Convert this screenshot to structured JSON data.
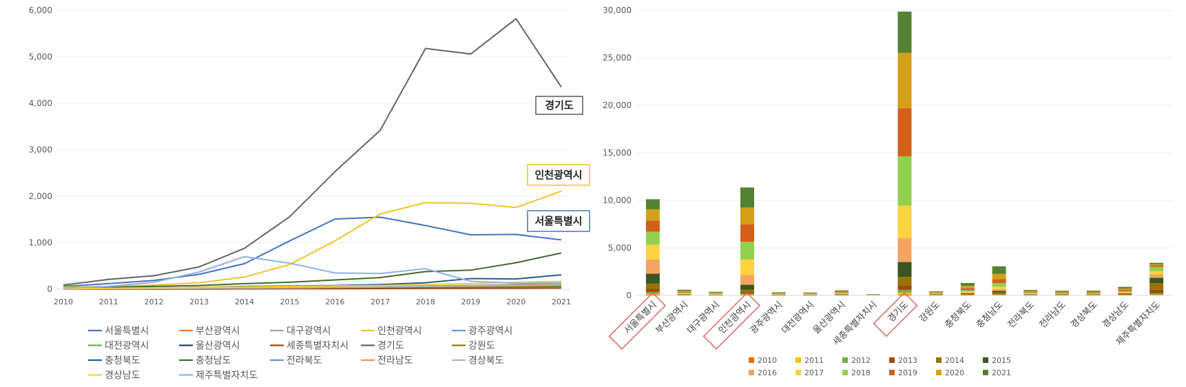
{
  "chart_data": [
    {
      "type": "line",
      "title": "",
      "xlabel": "",
      "ylabel": "",
      "ylim": [
        0,
        6000
      ],
      "yticks": [
        0,
        1000,
        2000,
        3000,
        4000,
        5000,
        6000
      ],
      "ytick_labels": [
        "0",
        "1,000",
        "2,000",
        "3,000",
        "4,000",
        "5,000",
        "6,000"
      ],
      "x": [
        "2010",
        "2011",
        "2012",
        "2013",
        "2014",
        "2015",
        "2016",
        "2017",
        "2018",
        "2019",
        "2020",
        "2021"
      ],
      "grid": true,
      "legend_position": "bottom",
      "series": [
        {
          "name": "서울특별시",
          "color": "#4472c4",
          "values": [
            60,
            120,
            190,
            320,
            550,
            1040,
            1510,
            1550,
            1370,
            1170,
            1180,
            1060
          ]
        },
        {
          "name": "부산광역시",
          "color": "#ed7d31",
          "values": [
            5,
            10,
            15,
            20,
            30,
            40,
            50,
            60,
            70,
            80,
            100,
            120
          ]
        },
        {
          "name": "대구광역시",
          "color": "#a5a5a5",
          "values": [
            5,
            10,
            12,
            15,
            20,
            25,
            30,
            35,
            40,
            50,
            60,
            80
          ]
        },
        {
          "name": "인천광역시",
          "color": "#f2c12e",
          "values": [
            40,
            60,
            90,
            140,
            260,
            530,
            1040,
            1620,
            1860,
            1850,
            1760,
            2110
          ]
        },
        {
          "name": "광주광역시",
          "color": "#5b9bd5",
          "values": [
            5,
            8,
            10,
            12,
            18,
            25,
            30,
            35,
            40,
            45,
            55,
            60
          ]
        },
        {
          "name": "대전광역시",
          "color": "#70ad47",
          "values": [
            5,
            8,
            10,
            12,
            15,
            20,
            25,
            30,
            40,
            45,
            50,
            55
          ]
        },
        {
          "name": "울산광역시",
          "color": "#264478",
          "values": [
            10,
            15,
            20,
            25,
            30,
            35,
            40,
            50,
            60,
            70,
            80,
            90
          ]
        },
        {
          "name": "세종특별자치시",
          "color": "#9e480e",
          "values": [
            0,
            0,
            2,
            5,
            8,
            10,
            12,
            15,
            18,
            20,
            22,
            25
          ]
        },
        {
          "name": "경기도",
          "color": "#636363",
          "values": [
            90,
            210,
            290,
            480,
            880,
            1560,
            2530,
            3420,
            5180,
            5060,
            5820,
            4350
          ]
        },
        {
          "name": "강원도",
          "color": "#997300",
          "values": [
            5,
            10,
            15,
            20,
            25,
            30,
            40,
            45,
            50,
            55,
            60,
            70
          ]
        },
        {
          "name": "충청북도",
          "color": "#255e91",
          "values": [
            10,
            20,
            30,
            40,
            60,
            70,
            80,
            100,
            140,
            230,
            220,
            310
          ]
        },
        {
          "name": "충청남도",
          "color": "#43682b",
          "values": [
            20,
            40,
            60,
            80,
            120,
            150,
            200,
            250,
            380,
            410,
            570,
            780
          ]
        },
        {
          "name": "전라북도",
          "color": "#698ed0",
          "values": [
            5,
            10,
            15,
            20,
            30,
            40,
            50,
            60,
            70,
            80,
            90,
            100
          ]
        },
        {
          "name": "전라남도",
          "color": "#f1975a",
          "values": [
            5,
            10,
            15,
            20,
            25,
            30,
            40,
            50,
            60,
            70,
            80,
            90
          ]
        },
        {
          "name": "경상북도",
          "color": "#b7b7b7",
          "values": [
            5,
            10,
            15,
            20,
            25,
            30,
            40,
            50,
            60,
            70,
            80,
            100
          ]
        },
        {
          "name": "경상남도",
          "color": "#ffcd33",
          "values": [
            10,
            20,
            30,
            40,
            50,
            60,
            70,
            80,
            100,
            120,
            150,
            170
          ]
        },
        {
          "name": "제주특별자치도",
          "color": "#8cb4e0",
          "values": [
            20,
            60,
            150,
            370,
            700,
            560,
            350,
            340,
            440,
            170,
            130,
            140
          ]
        }
      ],
      "annotations": [
        {
          "label": "경기도",
          "series": "경기도"
        },
        {
          "label": "인천광역시",
          "series": "인천광역시"
        },
        {
          "label": "서울특별시",
          "series": "서울특별시"
        }
      ]
    },
    {
      "type": "bar",
      "stacked": true,
      "title": "",
      "xlabel": "",
      "ylabel": "",
      "ylim": [
        0,
        30000
      ],
      "yticks": [
        0,
        5000,
        10000,
        15000,
        20000,
        25000,
        30000
      ],
      "ytick_labels": [
        "0",
        "5,000",
        "10,000",
        "15,000",
        "20,000",
        "25,000",
        "30,000"
      ],
      "grid": true,
      "legend_position": "bottom",
      "categories": [
        "서울특별시",
        "부산광역시",
        "대구광역시",
        "인천광역시",
        "광주광역시",
        "대전광역시",
        "울산광역시",
        "세종특별자치시",
        "경기도",
        "강원도",
        "충청북도",
        "충청남도",
        "전라북도",
        "전라남도",
        "경상북도",
        "경상남도",
        "제주특별자치도"
      ],
      "highlighted_categories": [
        "서울특별시",
        "인천광역시",
        "경기도"
      ],
      "series": [
        {
          "name": "2010",
          "color": "#e46c0a",
          "values": [
            60,
            5,
            5,
            40,
            5,
            5,
            10,
            0,
            90,
            5,
            10,
            20,
            5,
            5,
            5,
            10,
            20
          ]
        },
        {
          "name": "2011",
          "color": "#ffc000",
          "values": [
            120,
            10,
            10,
            60,
            8,
            8,
            15,
            0,
            210,
            10,
            20,
            40,
            10,
            10,
            10,
            20,
            60
          ]
        },
        {
          "name": "2012",
          "color": "#70ad47",
          "values": [
            190,
            15,
            12,
            90,
            10,
            10,
            20,
            2,
            290,
            15,
            30,
            60,
            15,
            15,
            15,
            30,
            150
          ]
        },
        {
          "name": "2013",
          "color": "#9e480e",
          "values": [
            320,
            20,
            15,
            140,
            12,
            12,
            25,
            5,
            480,
            20,
            40,
            80,
            20,
            20,
            20,
            40,
            370
          ]
        },
        {
          "name": "2014",
          "color": "#997300",
          "values": [
            550,
            30,
            20,
            260,
            18,
            15,
            30,
            8,
            880,
            25,
            60,
            120,
            30,
            25,
            25,
            50,
            700
          ]
        },
        {
          "name": "2015",
          "color": "#375623",
          "values": [
            1040,
            40,
            25,
            530,
            25,
            20,
            35,
            10,
            1560,
            30,
            70,
            150,
            40,
            30,
            30,
            60,
            560
          ]
        },
        {
          "name": "2016",
          "color": "#f4a460",
          "values": [
            1510,
            50,
            30,
            1040,
            30,
            25,
            40,
            12,
            2530,
            40,
            80,
            200,
            50,
            40,
            40,
            70,
            350
          ]
        },
        {
          "name": "2017",
          "color": "#ffd23f",
          "values": [
            1550,
            60,
            35,
            1620,
            35,
            30,
            50,
            15,
            3420,
            45,
            100,
            250,
            60,
            50,
            50,
            80,
            340
          ]
        },
        {
          "name": "2018",
          "color": "#92d050",
          "values": [
            1370,
            70,
            40,
            1860,
            40,
            40,
            60,
            18,
            5180,
            50,
            140,
            380,
            70,
            60,
            60,
            100,
            440
          ]
        },
        {
          "name": "2019",
          "color": "#d35f1a",
          "values": [
            1170,
            80,
            50,
            1850,
            45,
            45,
            70,
            20,
            5060,
            55,
            230,
            410,
            80,
            70,
            70,
            120,
            170
          ]
        },
        {
          "name": "2020",
          "color": "#d4a017",
          "values": [
            1180,
            100,
            60,
            1760,
            55,
            50,
            80,
            22,
            5820,
            60,
            220,
            570,
            90,
            80,
            80,
            150,
            130
          ]
        },
        {
          "name": "2021",
          "color": "#548235",
          "values": [
            1060,
            120,
            80,
            2110,
            60,
            55,
            90,
            25,
            4350,
            70,
            310,
            780,
            100,
            90,
            100,
            170,
            140
          ]
        }
      ]
    }
  ]
}
